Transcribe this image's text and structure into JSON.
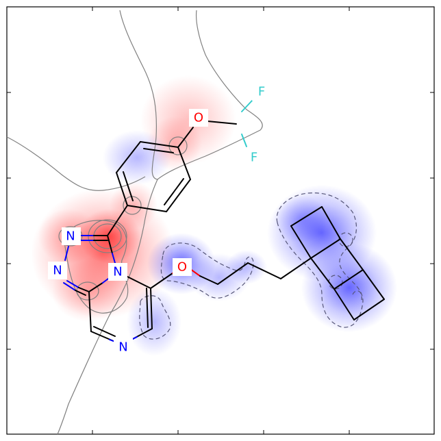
{
  "atoms": {
    "n1": "N",
    "n2": "N",
    "n3": "N",
    "n4": "N",
    "o1": "O",
    "o2": "O",
    "f1": "F",
    "f2": "F"
  },
  "colors": {
    "positive": "#ff0000",
    "negative": "#0000ff",
    "nitrogen": "#0000ff",
    "oxygen": "#ff0000",
    "fluorine": "#33cccc",
    "bond": "#000000",
    "contour": "#808080",
    "frame": "#000000"
  }
}
